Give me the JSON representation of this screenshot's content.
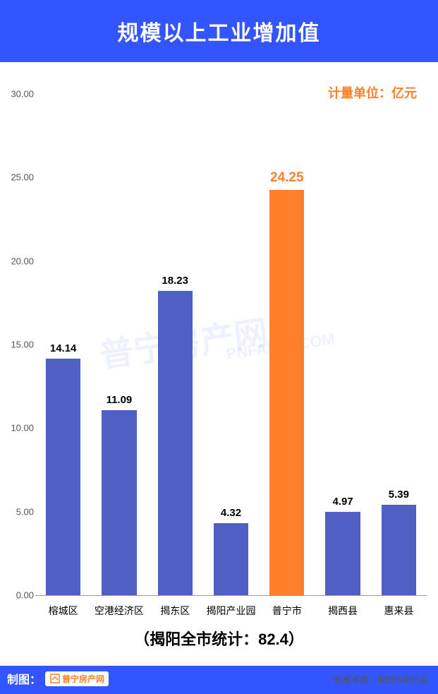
{
  "header": {
    "title": "规模以上工业增加值",
    "background_color": "#3355ff",
    "title_color": "#ffffff",
    "title_fontsize": 30
  },
  "chart": {
    "type": "bar",
    "unit_label": "计量单位：亿元",
    "unit_color": "#ff7f2a",
    "unit_fontsize": 18,
    "categories": [
      "榕城区",
      "空港经济区",
      "揭东区",
      "揭阳产业园",
      "普宁市",
      "揭西县",
      "惠来县"
    ],
    "values": [
      14.14,
      11.09,
      18.23,
      4.32,
      24.25,
      4.97,
      5.39
    ],
    "value_labels": [
      "14.14",
      "11.09",
      "18.23",
      "4.32",
      "24.25",
      "4.97",
      "5.39"
    ],
    "bar_colors": [
      "#4f5fc4",
      "#4f5fc4",
      "#4f5fc4",
      "#4f5fc4",
      "#ff7f2a",
      "#4f5fc4",
      "#4f5fc4"
    ],
    "label_colors": [
      "#000000",
      "#000000",
      "#000000",
      "#000000",
      "#ff7f2a",
      "#000000",
      "#000000"
    ],
    "highlight_index": 4,
    "ylim": [
      0,
      30
    ],
    "ytick_step": 5,
    "yticks": [
      "0.00",
      "5.00",
      "10.00",
      "15.00",
      "20.00",
      "25.00",
      "30.00"
    ],
    "ytick_fontsize": 13,
    "xlabel_fontsize": 14,
    "value_fontsize": 15,
    "highlight_value_fontsize": 19,
    "bar_width_ratio": 0.62,
    "background_color": "#ffffff",
    "axis_color": "#999999"
  },
  "subtitle": {
    "text": "（揭阳全市统计：82.4）",
    "fontsize": 22
  },
  "footer": {
    "background_color": "#3355ff",
    "credit_label": "制图：",
    "logo_text": "普宁房产网",
    "logo_color": "#ff7f2a",
    "source_text": "*数据来源：揭阳市统计局",
    "source_fontsize": 12,
    "credit_fontsize": 16
  },
  "watermark": {
    "text_cn": "普宁房产网",
    "text_en": "PNFANG .COM"
  }
}
